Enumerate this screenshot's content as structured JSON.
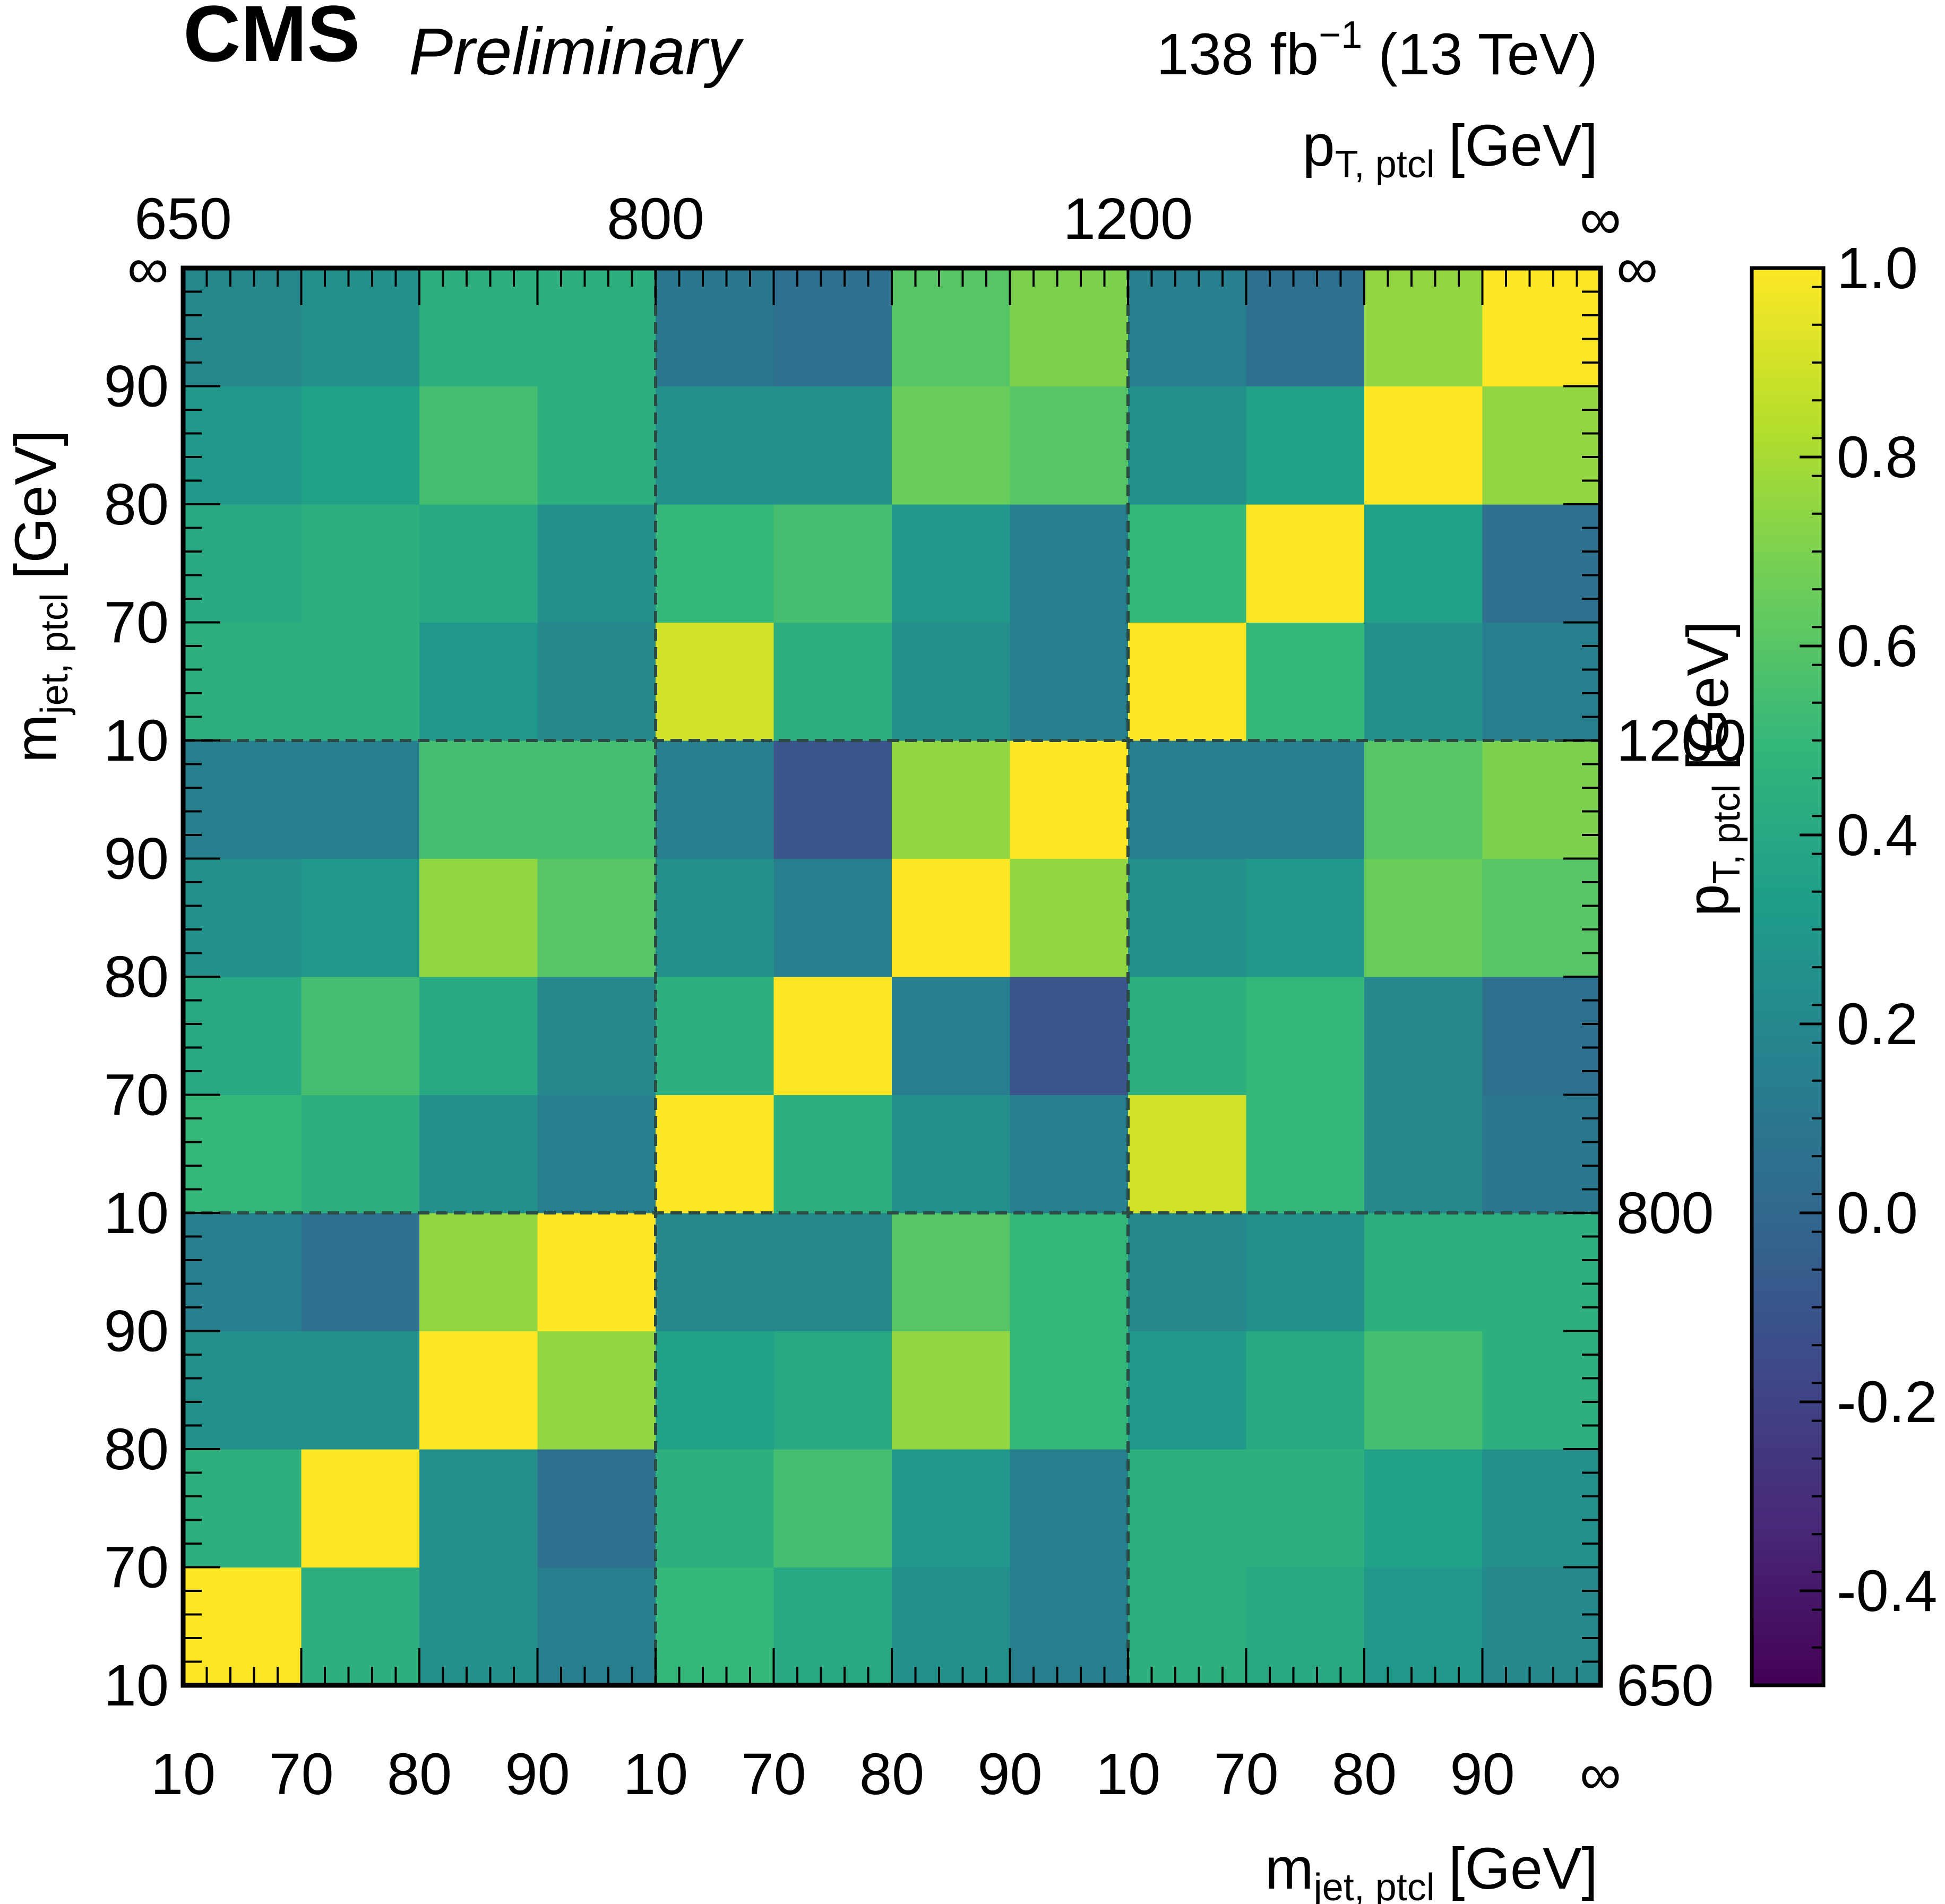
{
  "header": {
    "experiment": "CMS",
    "status": "Preliminary",
    "lumi_value": "138 fb",
    "lumi_exponent": "−1",
    "energy": "(13 TeV)"
  },
  "chart_data": {
    "type": "heatmap",
    "title": "",
    "xlabel": {
      "main": "m",
      "sub": "jet, ptcl",
      "unit": "[GeV]"
    },
    "ylabel": {
      "main": "m",
      "sub": "jet, ptcl",
      "unit": "[GeV]"
    },
    "x2label": {
      "main": "p",
      "sub": "T, ptcl",
      "unit": "[GeV]"
    },
    "y2label": {
      "main": "p",
      "sub": "T, ptcl",
      "unit": "[GeV]"
    },
    "bin_edge_labels": [
      "10",
      "70",
      "80",
      "90",
      "10",
      "70",
      "80",
      "90",
      "10",
      "70",
      "80",
      "90",
      "∞"
    ],
    "pt_edge_labels": [
      "650",
      "800",
      "1200",
      "∞"
    ],
    "pt_block_edges": [
      0,
      4,
      8,
      12
    ],
    "zlim": [
      -0.5,
      1.0
    ],
    "colorbar_ticks": [
      {
        "value": 1.0,
        "label": "1.0"
      },
      {
        "value": 0.8,
        "label": "0.8"
      },
      {
        "value": 0.6,
        "label": "0.6"
      },
      {
        "value": 0.4,
        "label": "0.4"
      },
      {
        "value": 0.2,
        "label": "0.2"
      },
      {
        "value": 0.0,
        "label": "0.0"
      },
      {
        "value": -0.2,
        "label": "-0.2"
      },
      {
        "value": -0.4,
        "label": "-0.4"
      }
    ],
    "colormap": [
      "#440154",
      "#482878",
      "#3e4989",
      "#31688e",
      "#26828e",
      "#1f9e89",
      "#35b779",
      "#6ece58",
      "#b5de2b",
      "#fde725"
    ],
    "grid": false,
    "matrix": [
      [
        1.0,
        0.45,
        0.25,
        0.15,
        0.5,
        0.4,
        0.25,
        0.15,
        0.45,
        0.4,
        0.3,
        0.2
      ],
      [
        0.45,
        1.0,
        0.25,
        0.05,
        0.45,
        0.55,
        0.3,
        0.15,
        0.45,
        0.45,
        0.35,
        0.25
      ],
      [
        0.25,
        0.25,
        1.0,
        0.75,
        0.35,
        0.4,
        0.75,
        0.5,
        0.3,
        0.4,
        0.55,
        0.45
      ],
      [
        0.15,
        0.05,
        0.75,
        1.0,
        0.2,
        0.2,
        0.6,
        0.5,
        0.2,
        0.25,
        0.45,
        0.45
      ],
      [
        0.5,
        0.45,
        0.25,
        0.15,
        1.0,
        0.45,
        0.25,
        0.15,
        0.9,
        0.5,
        0.2,
        0.1
      ],
      [
        0.4,
        0.55,
        0.4,
        0.2,
        0.45,
        1.0,
        0.15,
        -0.1,
        0.45,
        0.5,
        0.2,
        0.05
      ],
      [
        0.25,
        0.3,
        0.75,
        0.6,
        0.25,
        0.15,
        1.0,
        0.75,
        0.25,
        0.3,
        0.65,
        0.6
      ],
      [
        0.15,
        0.15,
        0.55,
        0.55,
        0.15,
        -0.1,
        0.75,
        1.0,
        0.15,
        0.15,
        0.6,
        0.7
      ],
      [
        0.45,
        0.45,
        0.3,
        0.2,
        0.9,
        0.45,
        0.25,
        0.15,
        1.0,
        0.5,
        0.25,
        0.15
      ],
      [
        0.4,
        0.45,
        0.4,
        0.25,
        0.5,
        0.55,
        0.3,
        0.15,
        0.5,
        1.0,
        0.35,
        0.05
      ],
      [
        0.3,
        0.35,
        0.55,
        0.45,
        0.25,
        0.25,
        0.65,
        0.6,
        0.25,
        0.35,
        1.0,
        0.75
      ],
      [
        0.2,
        0.25,
        0.45,
        0.45,
        0.1,
        0.05,
        0.6,
        0.7,
        0.15,
        0.05,
        0.75,
        1.0
      ]
    ]
  }
}
